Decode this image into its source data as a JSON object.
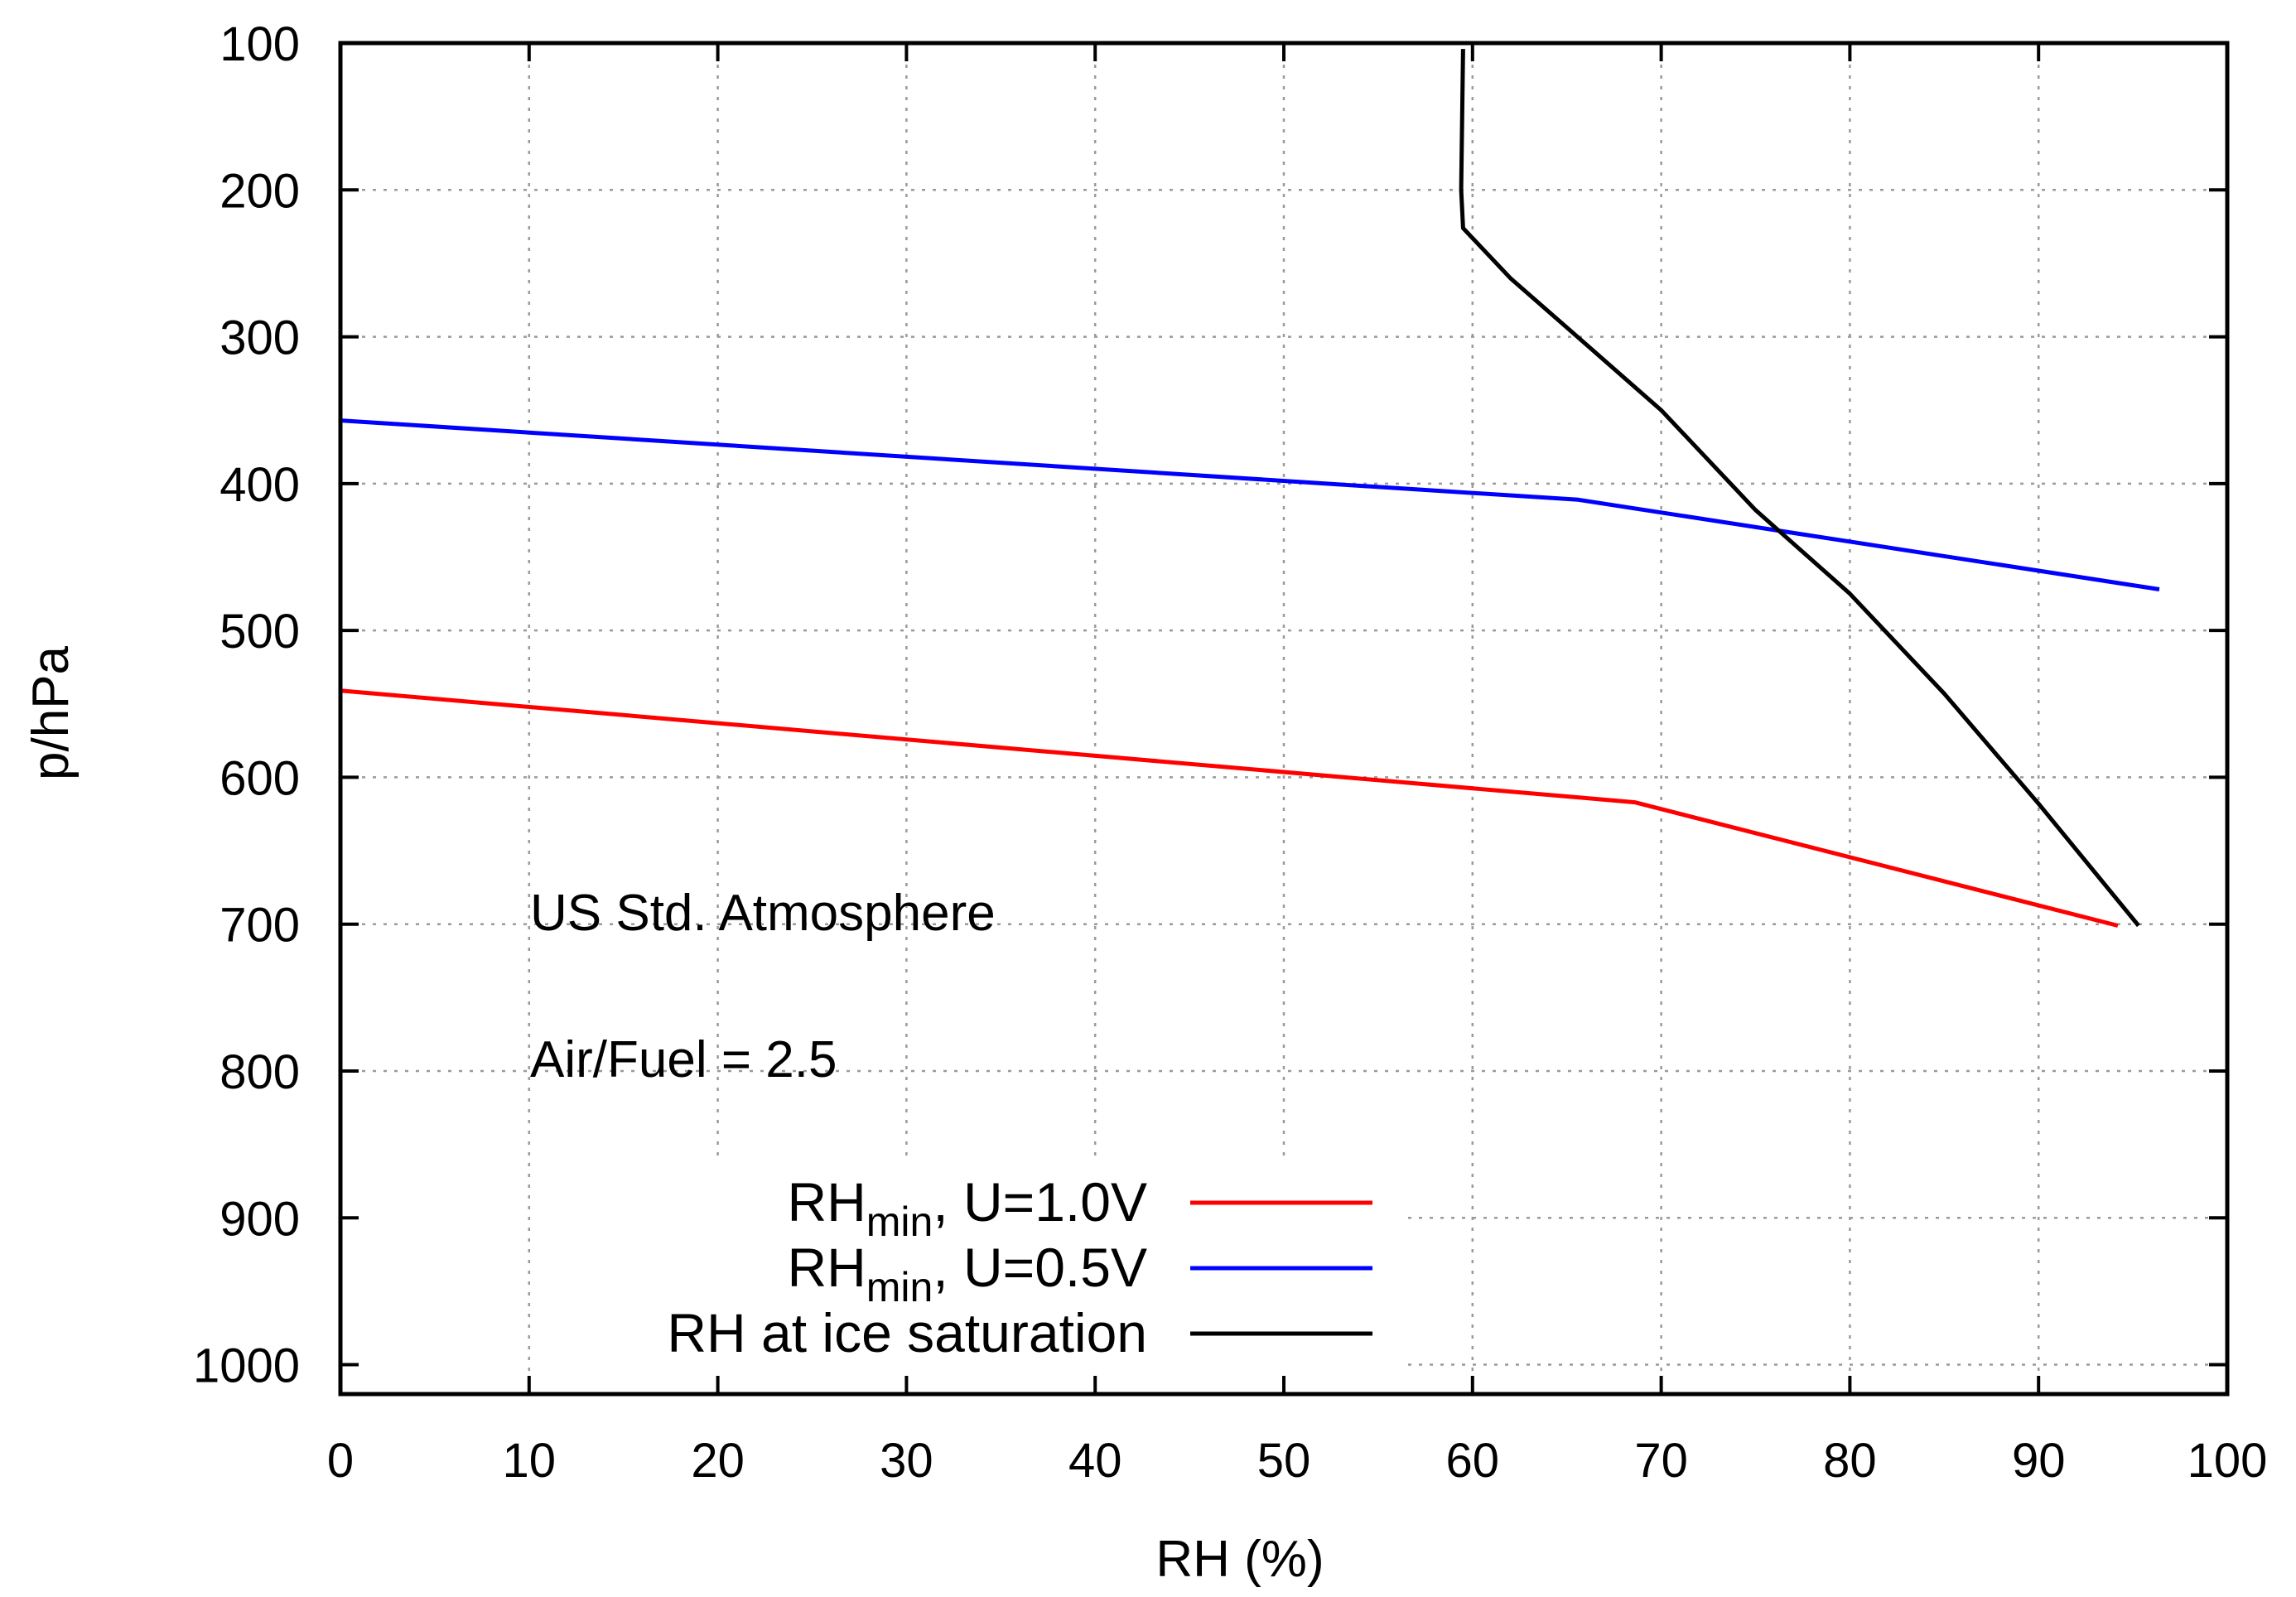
{
  "chart_data": {
    "type": "line",
    "title": "",
    "xlabel": "RH (%)",
    "ylabel": "p/hPa",
    "xlim": [
      0,
      100
    ],
    "ylim": [
      100,
      1020
    ],
    "y_inverted": true,
    "grid": true,
    "x_ticks": [
      0,
      10,
      20,
      30,
      40,
      50,
      60,
      70,
      80,
      90,
      100
    ],
    "x_tick_labels": [
      "0",
      "10",
      "20",
      "30",
      "40",
      "50",
      "60",
      "70",
      "80",
      "90",
      "100"
    ],
    "y_ticks": [
      100,
      200,
      300,
      400,
      500,
      600,
      700,
      800,
      900,
      1000
    ],
    "y_tick_labels": [
      "100",
      "200",
      "300",
      "400",
      "500",
      "600",
      "700",
      "800",
      "900",
      "1000"
    ],
    "annotations": [
      {
        "text": "US Std. Atmosphere",
        "x": 10,
        "y": 700
      },
      {
        "text": "Air/Fuel = 2.5",
        "x": 10,
        "y": 800
      }
    ],
    "legend_position": "bottom-center",
    "series": [
      {
        "name": "RH_min, U=1.0V",
        "label_main": "RH",
        "label_sub": "min",
        "label_rest": ", U=1.0V",
        "color": "#ff0000",
        "points": [
          [
            0,
            541
          ],
          [
            68.6,
            617
          ],
          [
            94.2,
            701
          ]
        ]
      },
      {
        "name": "RH_min, U=0.5V",
        "label_main": "RH",
        "label_sub": "min",
        "label_rest": ", U=0.5V",
        "color": "#0000ff",
        "points": [
          [
            0,
            357
          ],
          [
            65.6,
            411
          ],
          [
            96.4,
            472
          ]
        ]
      },
      {
        "name": "RH at ice saturation",
        "label_main": "RH at ice saturation",
        "label_sub": "",
        "label_rest": "",
        "color": "#000000",
        "points": [
          [
            59.5,
            104
          ],
          [
            59.4,
            200
          ],
          [
            59.5,
            226
          ],
          [
            62.0,
            260
          ],
          [
            66.0,
            305
          ],
          [
            70.0,
            350
          ],
          [
            75.0,
            418
          ],
          [
            80.0,
            475
          ],
          [
            85.0,
            543
          ],
          [
            90.0,
            618
          ],
          [
            95.3,
            701
          ]
        ]
      }
    ]
  }
}
